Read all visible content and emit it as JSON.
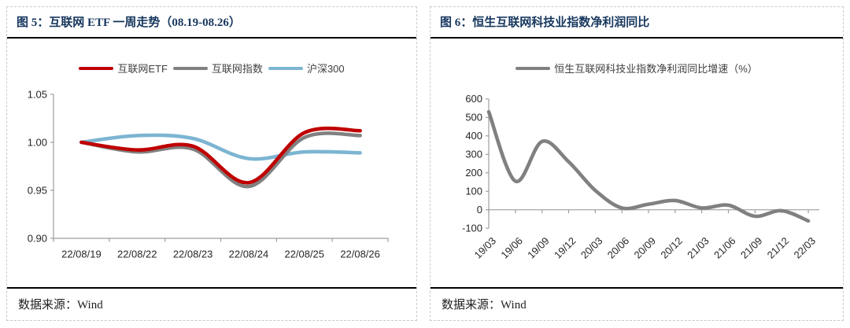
{
  "panels": [
    {
      "figure_label": "图 5：互联网 ETF 一周走势（08.19-08.26）",
      "source_label": "数据来源：Wind"
    },
    {
      "figure_label": "图 6：恒生互联网科技业指数净利润同比",
      "source_label": "数据来源：Wind"
    }
  ],
  "colors": {
    "title_navy": "#17375E",
    "axis_gray": "#9e9e9e",
    "tick_text": "#262626",
    "etf_red": "#C00000",
    "index_gray": "#808080",
    "hs300_blue": "#7CB5D2"
  },
  "chart_data": [
    {
      "type": "line",
      "title": "互联网 ETF 一周走势（08.19-08.26）",
      "categories": [
        "22/08/19",
        "22/08/22",
        "22/08/23",
        "22/08/24",
        "22/08/25",
        "22/08/26"
      ],
      "series": [
        {
          "name": "互联网ETF",
          "color": "#C00000",
          "values": [
            1.0,
            0.992,
            0.996,
            0.958,
            1.01,
            1.012
          ]
        },
        {
          "name": "互联网指数",
          "color": "#808080",
          "values": [
            1.0,
            0.99,
            0.993,
            0.954,
            1.005,
            1.007
          ]
        },
        {
          "name": "沪深300",
          "color": "#7CB5D2",
          "values": [
            1.0,
            1.007,
            1.004,
            0.983,
            0.99,
            0.989
          ]
        }
      ],
      "ylim": [
        0.9,
        1.05
      ],
      "yticks": [
        "0.90",
        "0.95",
        "1.00",
        "1.05"
      ],
      "xlabel": "",
      "ylabel": "",
      "grid": false,
      "smooth": true,
      "legend_position": "top"
    },
    {
      "type": "line",
      "title": "恒生互联网科技业指数净利润同比",
      "categories": [
        "19/03",
        "19/06",
        "19/09",
        "19/12",
        "20/03",
        "20/06",
        "20/09",
        "20/12",
        "21/03",
        "21/06",
        "21/09",
        "21/12",
        "22/03"
      ],
      "series": [
        {
          "name": "恒生互联网科技业指数净利润同比增速（%）",
          "color": "#808080",
          "values": [
            530,
            155,
            370,
            260,
            105,
            10,
            30,
            50,
            10,
            25,
            -35,
            -5,
            -60
          ]
        }
      ],
      "ylim": [
        -100,
        600
      ],
      "yticks": [
        "-100",
        "0",
        "100",
        "200",
        "300",
        "400",
        "500",
        "600"
      ],
      "xlabel": "",
      "ylabel": "",
      "grid": false,
      "smooth": true,
      "legend_position": "top",
      "xtick_rotation": -45,
      "x_axis_at_zero": true
    }
  ]
}
